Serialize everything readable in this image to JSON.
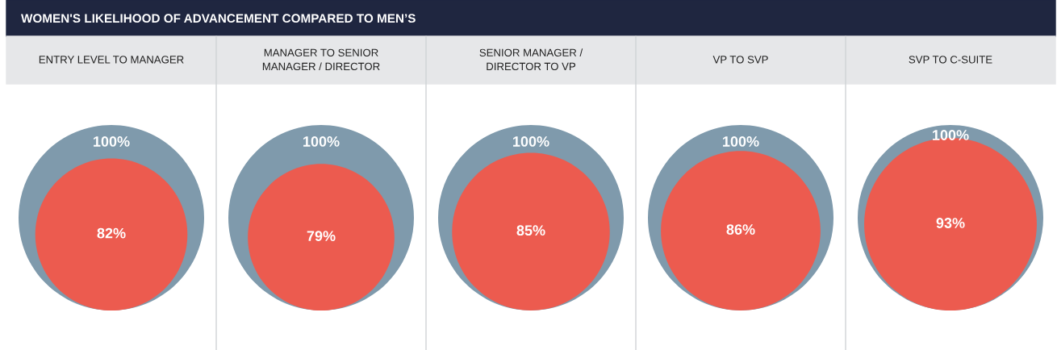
{
  "chart_data": {
    "type": "other",
    "title": "WOMEN'S LIKELIHOOD OF ADVANCEMENT COMPARED TO MEN’S",
    "categories": [
      "ENTRY LEVEL TO MANAGER",
      "MANAGER TO SENIOR\nMANAGER / DIRECTOR",
      "SENIOR MANAGER /\nDIRECTOR TO VP",
      "VP TO SVP",
      "SVP TO C-SUITE"
    ],
    "series": [
      {
        "color": "#7f9aac",
        "values": [
          100,
          100,
          100,
          100,
          100
        ],
        "value_labels": [
          "100%",
          "100%",
          "100%",
          "100%",
          "100%"
        ]
      },
      {
        "color": "#ec5b4f",
        "values": [
          82,
          79,
          85,
          86,
          93
        ],
        "value_labels": [
          "82%",
          "79%",
          "85%",
          "86%",
          "93%"
        ]
      }
    ]
  }
}
